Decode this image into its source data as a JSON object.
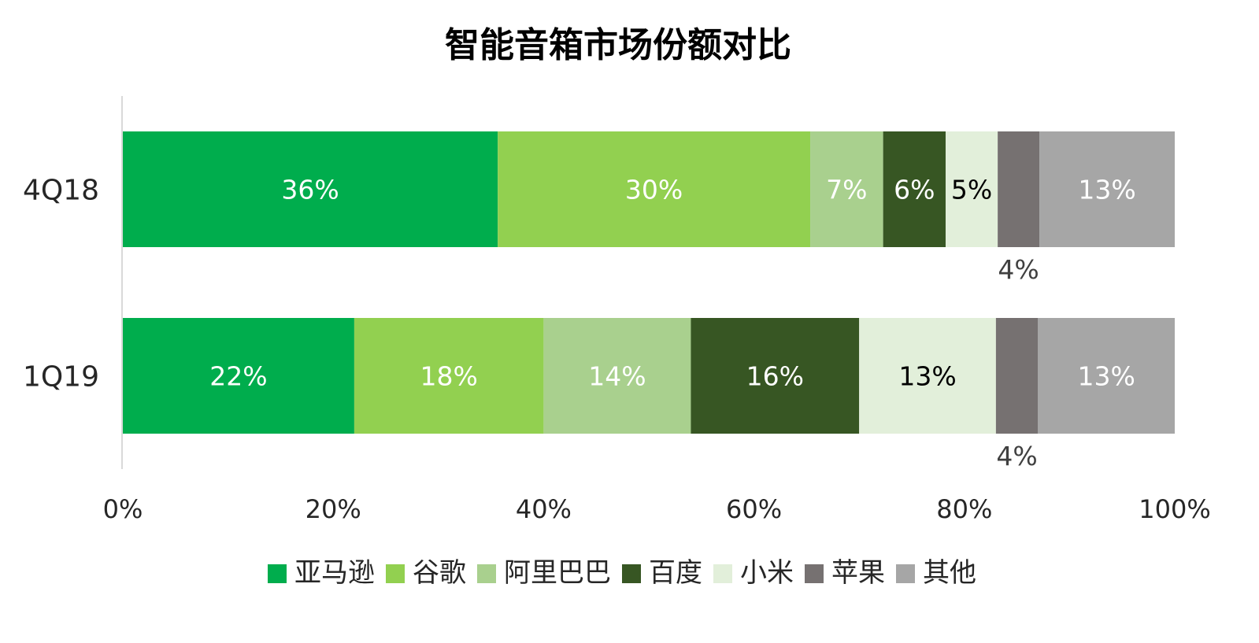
{
  "chart_data": {
    "type": "bar",
    "orientation": "horizontal",
    "stacked": "percent",
    "title": "智能音箱市场份额对比",
    "categories": [
      "4Q18",
      "1Q19"
    ],
    "series": [
      {
        "name": "亚马逊",
        "values": [
          36,
          22
        ],
        "labels": [
          "36%",
          "22%"
        ],
        "color": "#00AD4D",
        "label_color": "#FFFFFF"
      },
      {
        "name": "谷歌",
        "values": [
          30,
          18
        ],
        "labels": [
          "30%",
          "18%"
        ],
        "color": "#92D050",
        "label_color": "#FFFFFF"
      },
      {
        "name": "阿里巴巴",
        "values": [
          7,
          14
        ],
        "labels": [
          "7%",
          "14%"
        ],
        "color": "#A9D08E",
        "label_color": "#FFFFFF"
      },
      {
        "name": "百度",
        "values": [
          6,
          16
        ],
        "labels": [
          "6%",
          "16%"
        ],
        "color": "#375623",
        "label_color": "#FFFFFF"
      },
      {
        "name": "小米",
        "values": [
          5,
          13
        ],
        "labels": [
          "5%",
          "13%"
        ],
        "color": "#E2EFDA",
        "label_color": "#000000"
      },
      {
        "name": "苹果",
        "values": [
          4,
          4
        ],
        "labels": [
          "4%",
          "4%"
        ],
        "color": "#767171",
        "label_color": "#404040",
        "label_outside": true
      },
      {
        "name": "其他",
        "values": [
          13,
          13
        ],
        "labels": [
          "13%",
          "13%"
        ],
        "color": "#A6A6A6",
        "label_color": "#FFFFFF"
      }
    ],
    "xaxis": {
      "ticks": [
        "0%",
        "20%",
        "40%",
        "60%",
        "80%",
        "100%"
      ],
      "tick_values": [
        0,
        20,
        40,
        60,
        80,
        100
      ],
      "range": [
        0,
        100
      ]
    },
    "grid": false,
    "legend": {
      "position": "bottom"
    }
  }
}
